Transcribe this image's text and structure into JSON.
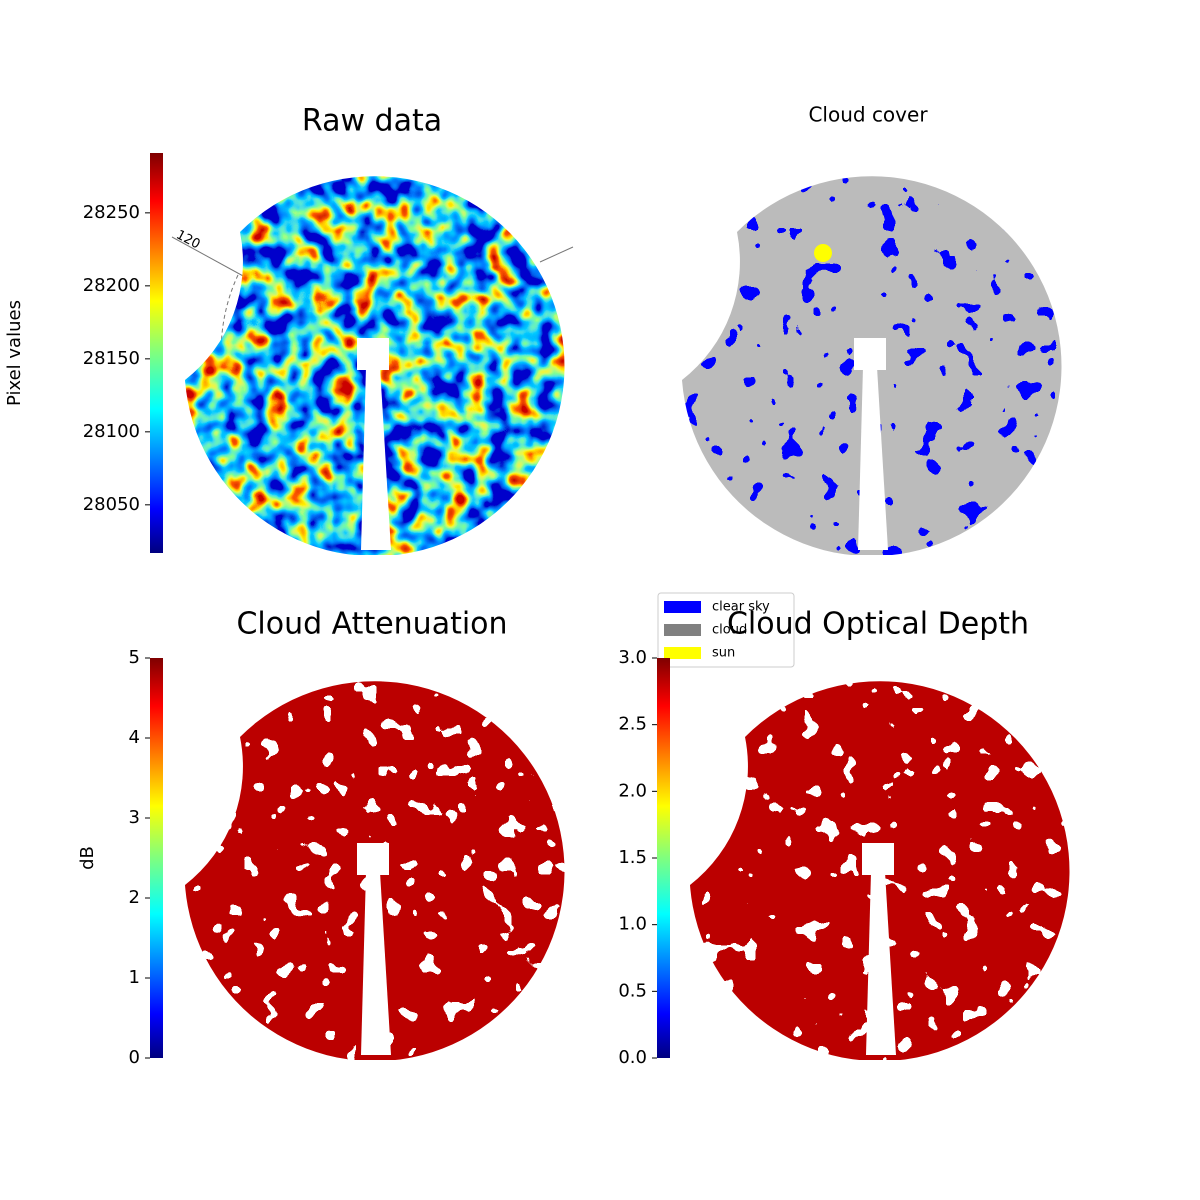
{
  "chart_data": [
    {
      "type": "image",
      "title": "Raw data",
      "colorbar_label": "Pixel values",
      "colormap": "jet",
      "ylim": [
        28017,
        28291
      ],
      "yticks": [
        28050,
        28100,
        28150,
        28200,
        28250
      ],
      "annotation": "120"
    },
    {
      "type": "mask",
      "title": "Cloud cover",
      "legend": [
        {
          "name": "clear sky",
          "color": "#0000ff"
        },
        {
          "name": "cloud",
          "color": "#808080"
        },
        {
          "name": "sun",
          "color": "#ffff00"
        }
      ]
    },
    {
      "type": "image",
      "title": "Cloud Attenuation",
      "colorbar_label": "dB",
      "colormap": "jet",
      "ylim": [
        0,
        5
      ],
      "yticks": [
        0,
        1,
        2,
        3,
        4,
        5
      ]
    },
    {
      "type": "image",
      "title": "Cloud Optical Depth",
      "colormap": "jet",
      "ylim": [
        0,
        3
      ],
      "yticks": [
        {
          "value": 0,
          "label": "0.0"
        },
        {
          "value": 0.5,
          "label": "0.5"
        },
        {
          "value": 1,
          "label": "1.0"
        },
        {
          "value": 1.5,
          "label": "1.5"
        },
        {
          "value": 2,
          "label": "2.0"
        },
        {
          "value": 2.5,
          "label": "2.5"
        },
        {
          "value": 3,
          "label": "3.0"
        }
      ]
    }
  ]
}
